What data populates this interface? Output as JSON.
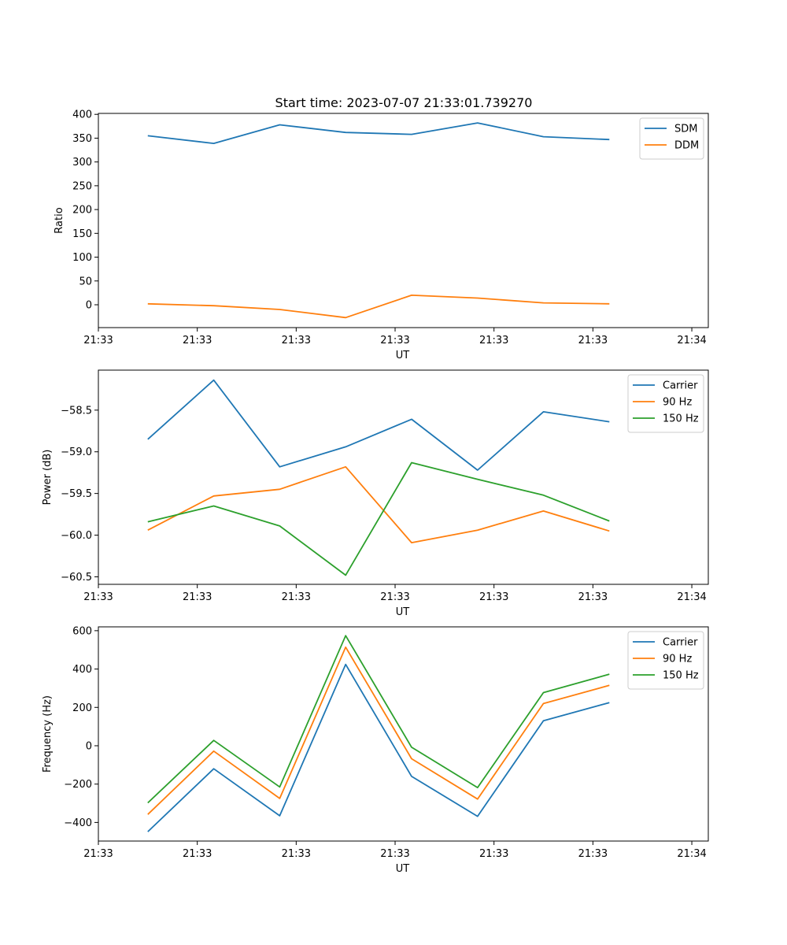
{
  "figure": {
    "title": "Start time: 2023-07-07 21:33:01.739270"
  },
  "chart_data": [
    {
      "type": "line",
      "title": "Start time: 2023-07-07 21:33:01.739270",
      "xlabel": "UT",
      "ylabel": "Ratio",
      "x": [
        0,
        1,
        2,
        3,
        4,
        5,
        6,
        7
      ],
      "xlim": [
        -0.75,
        8.5
      ],
      "x_ticks": [
        -0.75,
        0.75,
        2.25,
        3.75,
        5.25,
        6.75,
        8.25
      ],
      "x_tick_labels": [
        "21:33",
        "21:33",
        "21:33",
        "21:33",
        "21:33",
        "21:33",
        "21:34"
      ],
      "ylim": [
        -48,
        402
      ],
      "y_ticks": [
        0,
        50,
        100,
        150,
        200,
        250,
        300,
        350,
        400
      ],
      "y_tick_labels": [
        "0",
        "50",
        "100",
        "150",
        "200",
        "250",
        "300",
        "350",
        "400"
      ],
      "legend_position": "top-right",
      "series": [
        {
          "name": "SDM",
          "color": "#1f77b4",
          "values": [
            355,
            339,
            378,
            362,
            358,
            382,
            353,
            347
          ]
        },
        {
          "name": "DDM",
          "color": "#ff7f0e",
          "values": [
            2,
            -2,
            -10,
            -27,
            20,
            14,
            4,
            2
          ]
        }
      ]
    },
    {
      "type": "line",
      "title": "",
      "xlabel": "UT",
      "ylabel": "Power (dB)",
      "x": [
        0,
        1,
        2,
        3,
        4,
        5,
        6,
        7
      ],
      "xlim": [
        -0.75,
        8.5
      ],
      "x_ticks": [
        -0.75,
        0.75,
        2.25,
        3.75,
        5.25,
        6.75,
        8.25
      ],
      "x_tick_labels": [
        "21:33",
        "21:33",
        "21:33",
        "21:33",
        "21:33",
        "21:33",
        "21:34"
      ],
      "ylim": [
        -60.59,
        -58.02
      ],
      "y_ticks": [
        -60.5,
        -60.0,
        -59.5,
        -59.0,
        -58.5
      ],
      "y_tick_labels": [
        "−60.5",
        "−60.0",
        "−59.5",
        "−59.0",
        "−58.5"
      ],
      "legend_position": "top-right",
      "series": [
        {
          "name": "Carrier",
          "color": "#1f77b4",
          "values": [
            -58.85,
            -58.14,
            -59.18,
            -58.94,
            -58.61,
            -59.22,
            -58.52,
            -58.64
          ]
        },
        {
          "name": "90 Hz",
          "color": "#ff7f0e",
          "values": [
            -59.94,
            -59.53,
            -59.45,
            -59.18,
            -60.09,
            -59.94,
            -59.71,
            -59.95
          ]
        },
        {
          "name": "150 Hz",
          "color": "#2ca02c",
          "values": [
            -59.84,
            -59.65,
            -59.89,
            -60.48,
            -59.13,
            -59.33,
            -59.52,
            -59.83
          ]
        }
      ]
    },
    {
      "type": "line",
      "title": "",
      "xlabel": "UT",
      "ylabel": "Frequency (Hz)",
      "x": [
        0,
        1,
        2,
        3,
        4,
        5,
        6,
        7
      ],
      "xlim": [
        -0.75,
        8.5
      ],
      "x_ticks": [
        -0.75,
        0.75,
        2.25,
        3.75,
        5.25,
        6.75,
        8.25
      ],
      "x_tick_labels": [
        "21:33",
        "21:33",
        "21:33",
        "21:33",
        "21:33",
        "21:33",
        "21:34"
      ],
      "ylim": [
        -497,
        620
      ],
      "y_ticks": [
        -400,
        -200,
        0,
        200,
        400,
        600
      ],
      "y_tick_labels": [
        "−400",
        "−200",
        "0",
        "200",
        "400",
        "600"
      ],
      "legend_position": "top-right",
      "series": [
        {
          "name": "Carrier",
          "color": "#1f77b4",
          "values": [
            -448,
            -120,
            -365,
            424,
            -160,
            -368,
            130,
            225
          ]
        },
        {
          "name": "90 Hz",
          "color": "#ff7f0e",
          "values": [
            -358,
            -28,
            -275,
            514,
            -68,
            -278,
            220,
            315
          ]
        },
        {
          "name": "150 Hz",
          "color": "#2ca02c",
          "values": [
            -298,
            28,
            -215,
            574,
            -8,
            -218,
            277,
            373
          ]
        }
      ]
    }
  ]
}
